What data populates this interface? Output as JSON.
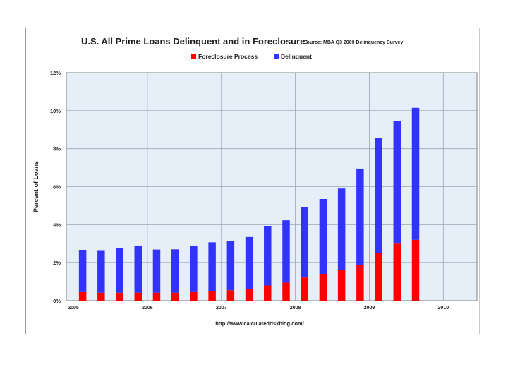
{
  "chart_data": {
    "type": "bar",
    "stacked": true,
    "title": "U.S. All Prime Loans Delinquent and in Foreclosure:",
    "subtitle": "Source: MBA Q3 2009 Delinquency Survey",
    "xlabel": "",
    "ylabel": "Percent of Loans",
    "ylim": [
      0,
      12
    ],
    "yticks": [
      "0%",
      "2%",
      "4%",
      "6%",
      "8%",
      "10%",
      "12%"
    ],
    "xticks": [
      "2005",
      "2006",
      "2007",
      "2008",
      "2009",
      "2010"
    ],
    "footer": "http://www.calculatedriskblog.com/",
    "grid": true,
    "legend_position": "top-center",
    "categories": [
      "2005 Q1",
      "2005 Q2",
      "2005 Q3",
      "2005 Q4",
      "2006 Q1",
      "2006 Q2",
      "2006 Q3",
      "2006 Q4",
      "2007 Q1",
      "2007 Q2",
      "2007 Q3",
      "2007 Q4",
      "2008 Q1",
      "2008 Q2",
      "2008 Q3",
      "2008 Q4",
      "2009 Q1",
      "2009 Q2",
      "2009 Q3"
    ],
    "series": [
      {
        "name": "Foreclosure Process",
        "color": "#ff0000",
        "values": [
          0.45,
          0.42,
          0.42,
          0.42,
          0.42,
          0.42,
          0.45,
          0.5,
          0.55,
          0.6,
          0.8,
          0.95,
          1.22,
          1.4,
          1.6,
          1.88,
          2.5,
          3.0,
          3.2
        ]
      },
      {
        "name": "Delinquent",
        "color": "#3333ff",
        "values": [
          2.2,
          2.2,
          2.35,
          2.48,
          2.27,
          2.28,
          2.45,
          2.57,
          2.58,
          2.75,
          3.12,
          3.28,
          3.7,
          3.95,
          4.3,
          5.07,
          6.05,
          6.45,
          6.95
        ]
      }
    ]
  }
}
